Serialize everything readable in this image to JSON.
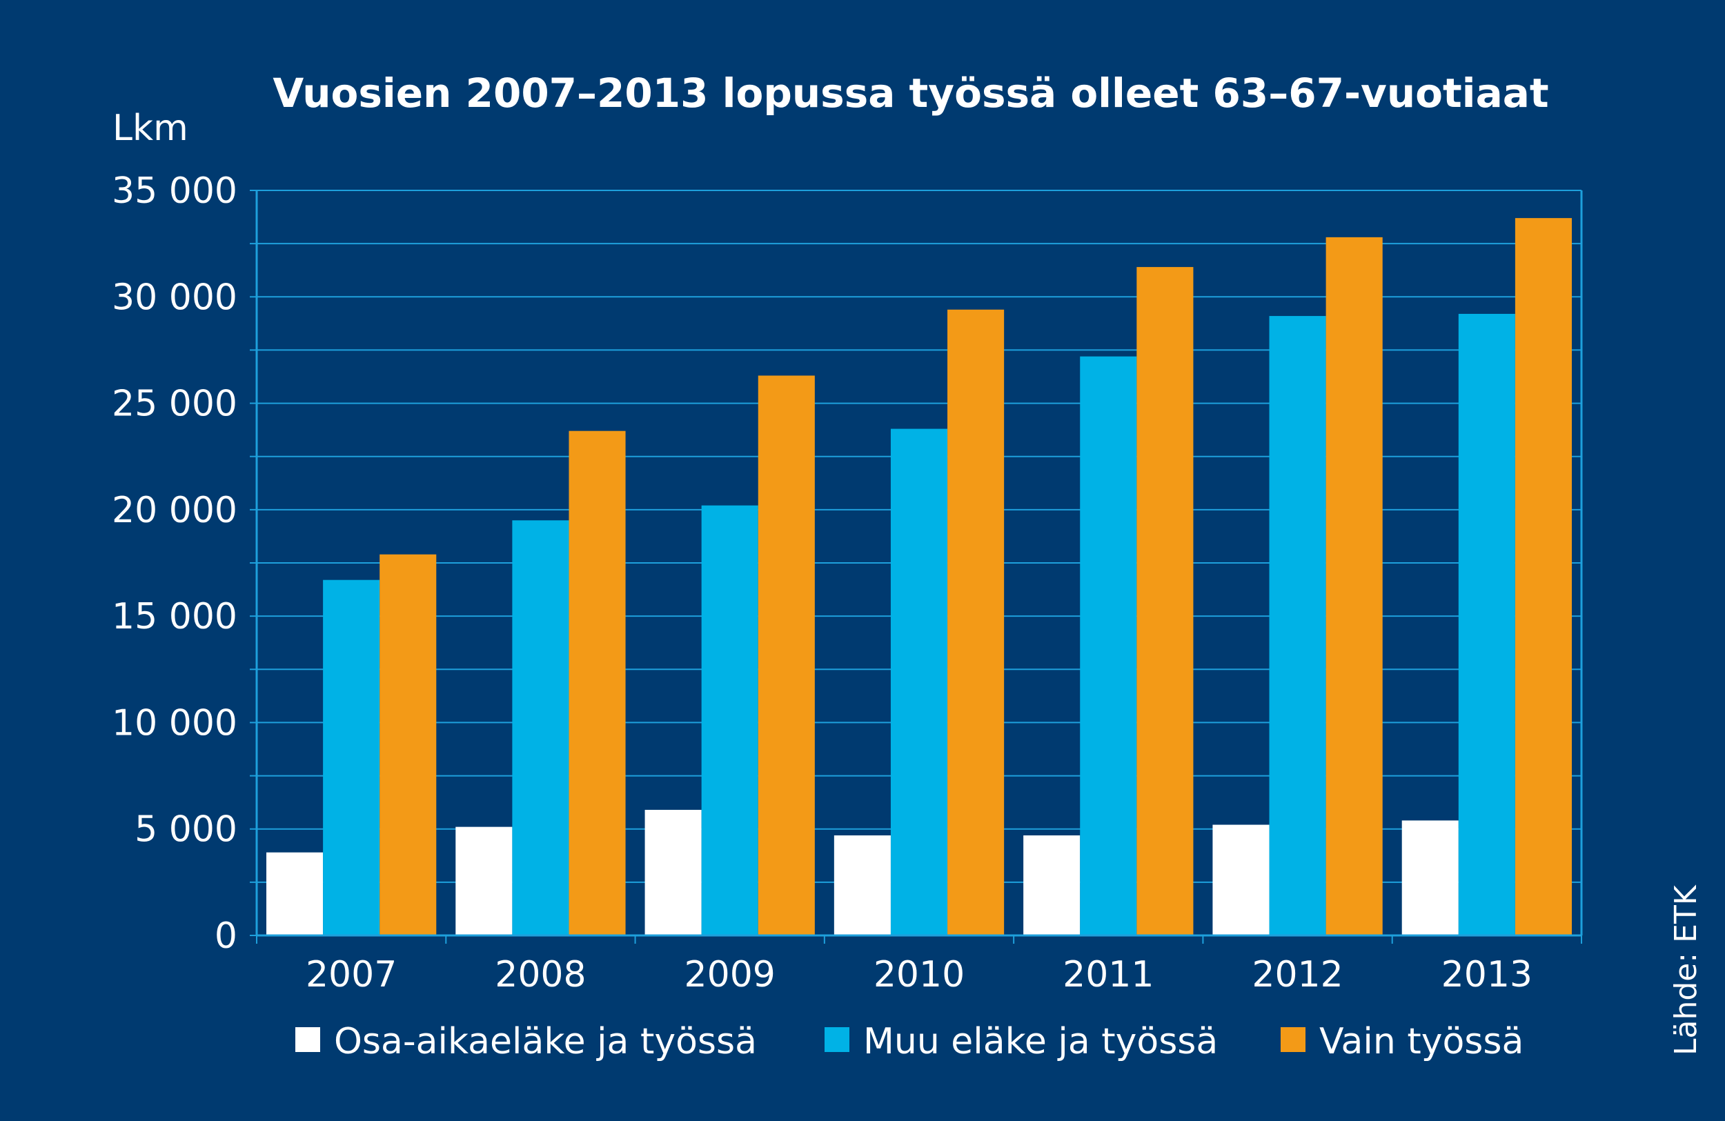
{
  "chart_data": {
    "type": "bar",
    "title": "Vuosien 2007–2013 lopussa työssä olleet 63–67-vuotiaat",
    "ylabel": "Lkm",
    "xlabel": "",
    "ylim": [
      0,
      35000
    ],
    "grid": true,
    "legend_position": "bottom",
    "categories": [
      "2007",
      "2008",
      "2009",
      "2010",
      "2011",
      "2012",
      "2013"
    ],
    "y_tick_values": [
      0,
      5000,
      10000,
      15000,
      20000,
      25000,
      30000,
      35000
    ],
    "y_tick_labels": [
      "0",
      "5 000",
      "10 000",
      "15 000",
      "20 000",
      "25 000",
      "30 000",
      "35 000"
    ],
    "series": [
      {
        "name": "Osa-aikaeläke ja työssä",
        "color": "#ffffff",
        "values": [
          3900,
          5100,
          5900,
          4700,
          4700,
          5200,
          5400
        ]
      },
      {
        "name": "Muu eläke ja työssä",
        "color": "#00b2e6",
        "values": [
          16700,
          19500,
          20200,
          23800,
          27200,
          29100,
          29200
        ]
      },
      {
        "name": "Vain työssä",
        "color": "#f39a17",
        "values": [
          17900,
          23700,
          26300,
          29400,
          31400,
          32800,
          33700
        ]
      }
    ],
    "source": "Lähde: ETK"
  },
  "colors": {
    "background": "#003a70",
    "grid": "#1ea0dc",
    "axis": "#1ea0dc",
    "text": "#ffffff"
  }
}
